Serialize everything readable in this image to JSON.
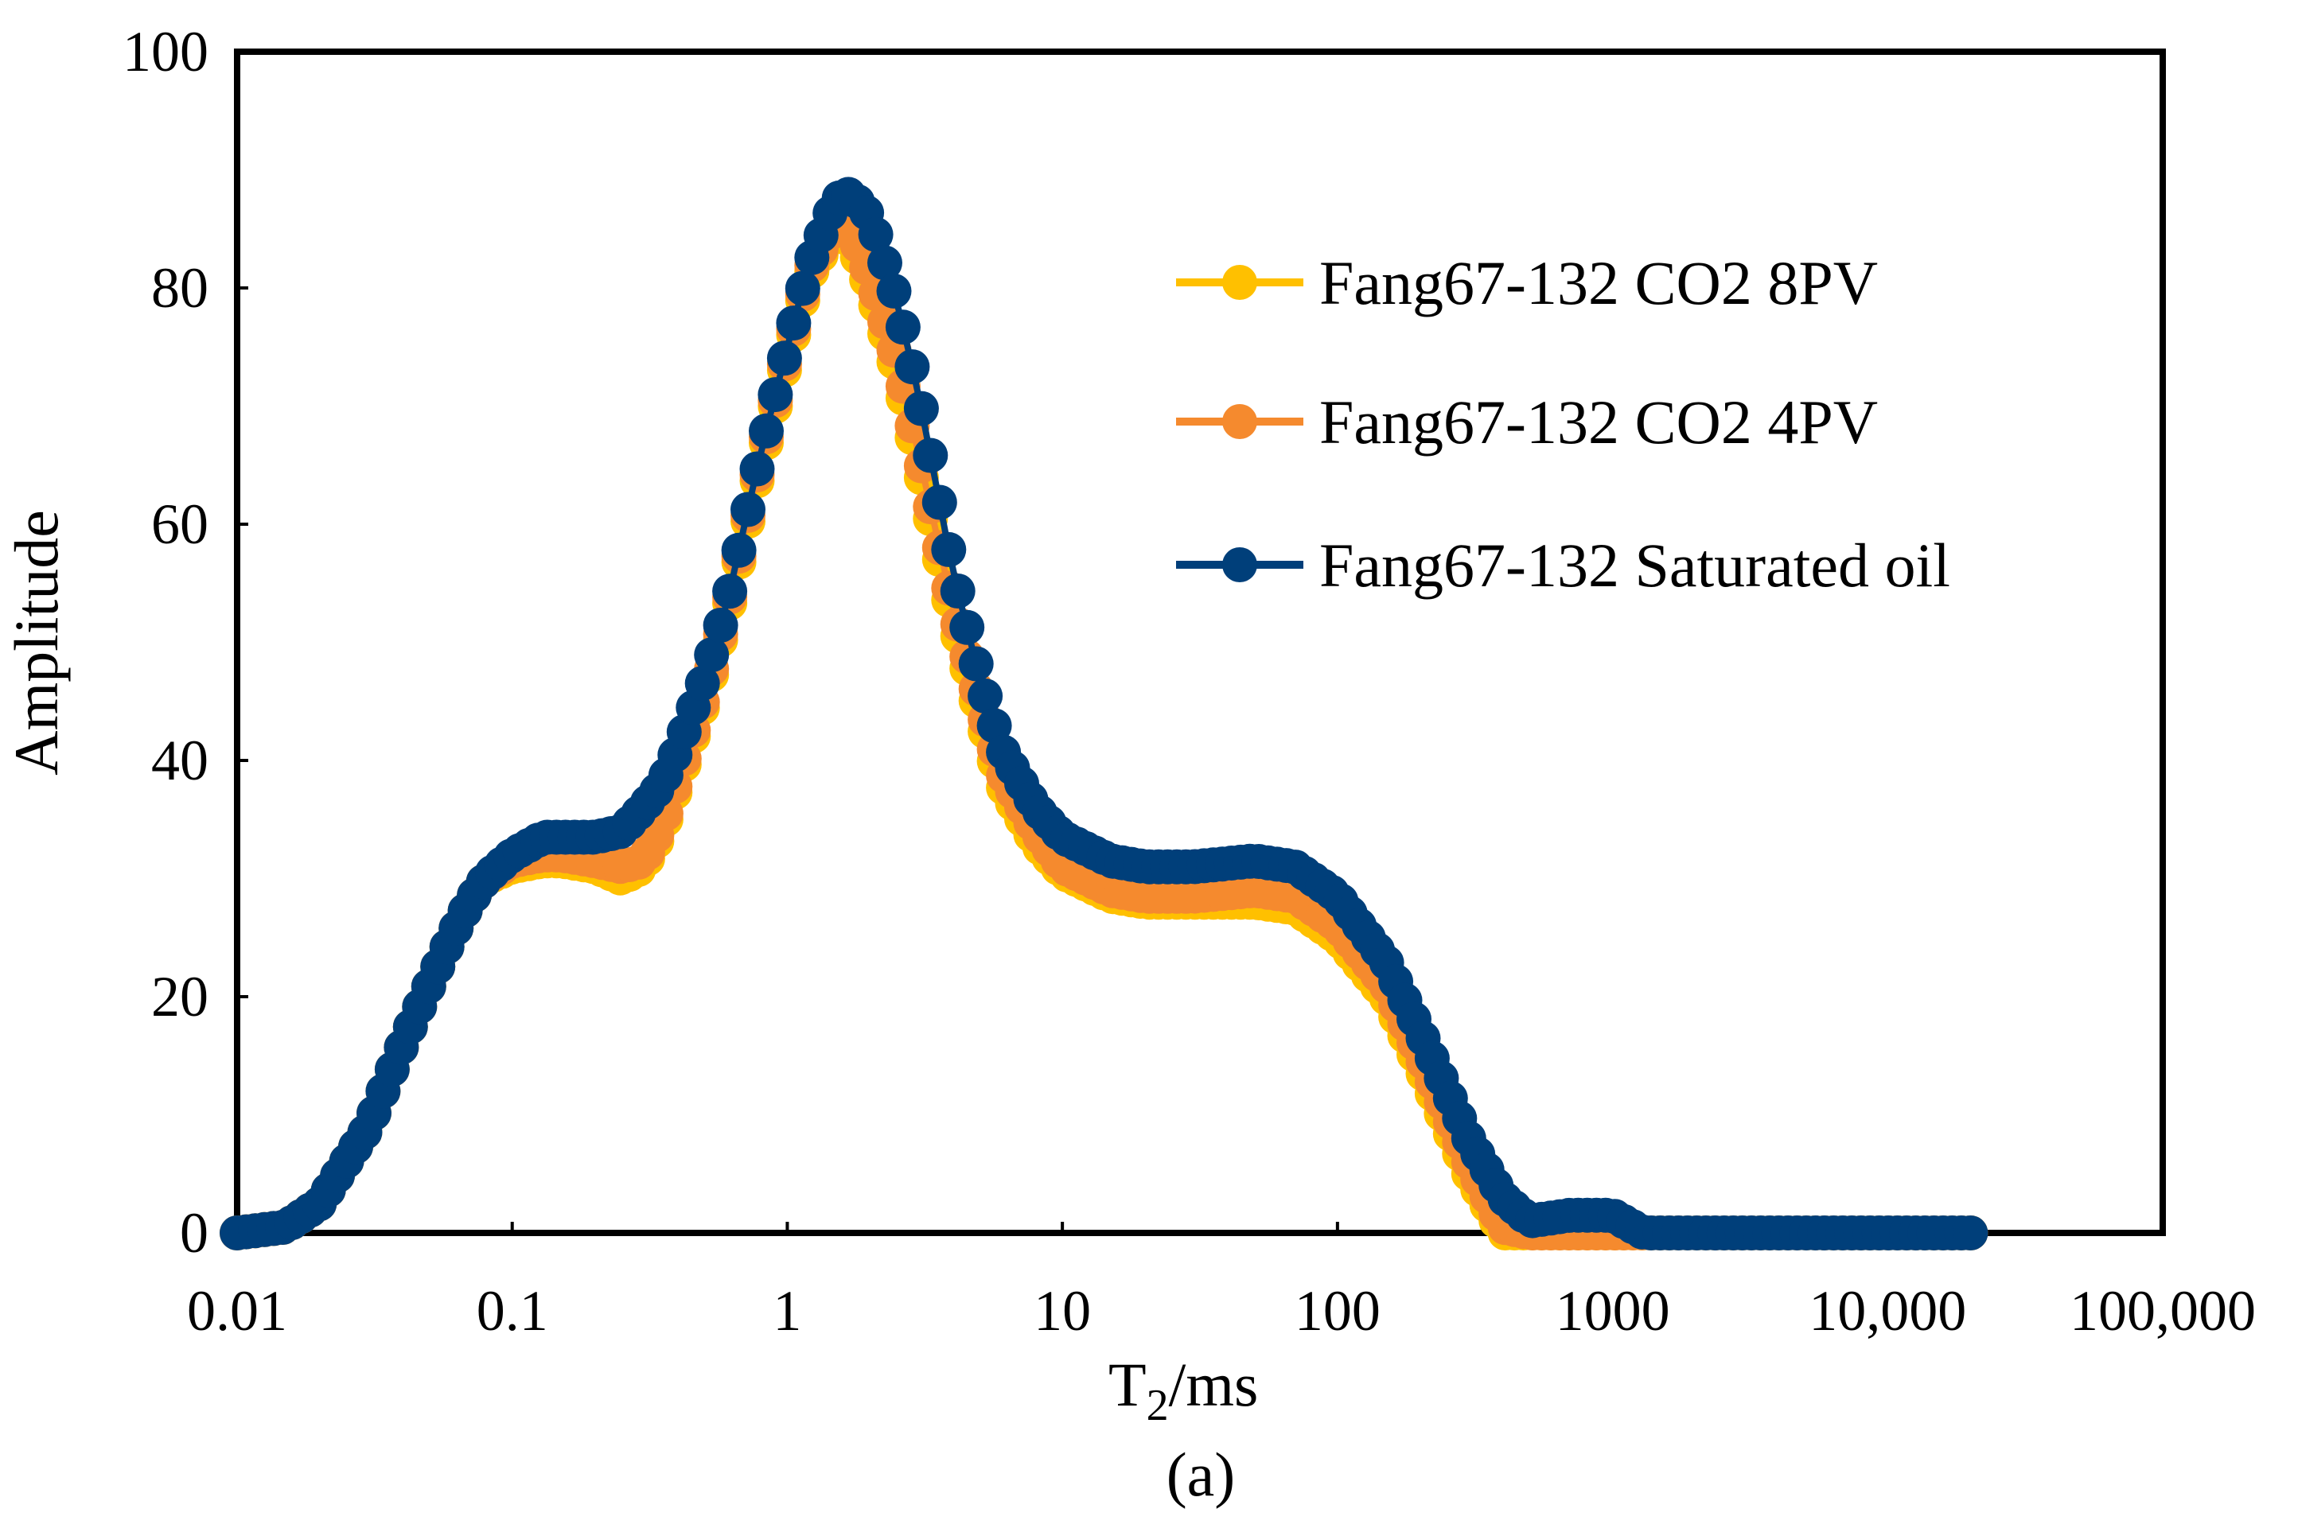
{
  "chart_data": {
    "type": "line",
    "title": "",
    "caption": "(a)",
    "xlabel_main": "T",
    "xlabel_sub": "2",
    "xlabel_suffix": "/ms",
    "ylabel": "Amplitude",
    "xscale": "log",
    "xlim": [
      0.01,
      100000
    ],
    "ylim": [
      0,
      100
    ],
    "grid": false,
    "legend_position": "top-right",
    "x_ticks": [
      0.01,
      0.1,
      1,
      10,
      100,
      1000,
      10000,
      100000
    ],
    "x_tick_labels": [
      "0.01",
      "0.1",
      "1",
      "10",
      "100",
      "1000",
      "10,000",
      "100,000"
    ],
    "y_ticks": [
      0,
      20,
      40,
      60,
      80,
      100
    ],
    "y_tick_labels": [
      "0",
      "20",
      "40",
      "60",
      "80",
      "100"
    ],
    "series": [
      {
        "name": "Fang67-132 CO2 8PV",
        "color": "#FFC000",
        "points": [
          [
            0.01,
            0
          ],
          [
            0.015,
            0.5
          ],
          [
            0.02,
            2.5
          ],
          [
            0.03,
            9
          ],
          [
            0.04,
            16
          ],
          [
            0.05,
            21
          ],
          [
            0.06,
            25
          ],
          [
            0.07,
            28
          ],
          [
            0.08,
            30
          ],
          [
            0.1,
            31
          ],
          [
            0.13,
            31.5
          ],
          [
            0.15,
            31.5
          ],
          [
            0.2,
            31
          ],
          [
            0.25,
            30
          ],
          [
            0.3,
            31
          ],
          [
            0.35,
            34
          ],
          [
            0.4,
            38
          ],
          [
            0.5,
            45
          ],
          [
            0.6,
            52
          ],
          [
            0.7,
            59
          ],
          [
            0.8,
            65
          ],
          [
            1.0,
            74
          ],
          [
            1.2,
            81
          ],
          [
            1.5,
            85
          ],
          [
            1.7,
            84
          ],
          [
            2.0,
            80
          ],
          [
            2.5,
            73
          ],
          [
            3.0,
            65
          ],
          [
            3.5,
            58
          ],
          [
            4.0,
            52
          ],
          [
            5.0,
            44
          ],
          [
            6.0,
            38
          ],
          [
            8.0,
            33
          ],
          [
            10,
            30.5
          ],
          [
            15,
            28.5
          ],
          [
            20,
            28
          ],
          [
            30,
            28
          ],
          [
            50,
            28
          ],
          [
            70,
            27.5
          ],
          [
            100,
            25
          ],
          [
            150,
            20
          ],
          [
            200,
            14
          ],
          [
            300,
            5
          ],
          [
            400,
            0
          ],
          [
            500,
            0
          ],
          [
            1000,
            0
          ],
          [
            2000,
            0
          ],
          [
            5000,
            0
          ],
          [
            10000,
            0
          ],
          [
            20000,
            0
          ]
        ]
      },
      {
        "name": "Fang67-132 CO2 4PV",
        "color": "#F58A2E",
        "points": [
          [
            0.01,
            0
          ],
          [
            0.015,
            0.5
          ],
          [
            0.02,
            2.5
          ],
          [
            0.03,
            9
          ],
          [
            0.04,
            16
          ],
          [
            0.05,
            21
          ],
          [
            0.06,
            25
          ],
          [
            0.07,
            28
          ],
          [
            0.08,
            30
          ],
          [
            0.1,
            31.5
          ],
          [
            0.13,
            32
          ],
          [
            0.15,
            32
          ],
          [
            0.2,
            31.5
          ],
          [
            0.25,
            31
          ],
          [
            0.3,
            31.5
          ],
          [
            0.35,
            34.5
          ],
          [
            0.4,
            38.5
          ],
          [
            0.5,
            45.5
          ],
          [
            0.6,
            52.5
          ],
          [
            0.7,
            59.5
          ],
          [
            0.8,
            65.5
          ],
          [
            1.0,
            74.5
          ],
          [
            1.2,
            81.5
          ],
          [
            1.5,
            85.5
          ],
          [
            1.7,
            85
          ],
          [
            2.0,
            81
          ],
          [
            2.5,
            74
          ],
          [
            3.0,
            66
          ],
          [
            3.5,
            59
          ],
          [
            4.0,
            53
          ],
          [
            5.0,
            45
          ],
          [
            6.0,
            39
          ],
          [
            8.0,
            34
          ],
          [
            10,
            31
          ],
          [
            15,
            29
          ],
          [
            20,
            28.5
          ],
          [
            30,
            28.5
          ],
          [
            50,
            29
          ],
          [
            70,
            28.5
          ],
          [
            100,
            26
          ],
          [
            150,
            21
          ],
          [
            200,
            15
          ],
          [
            300,
            6
          ],
          [
            400,
            0.5
          ],
          [
            500,
            0
          ],
          [
            700,
            0
          ],
          [
            1000,
            0
          ],
          [
            2000,
            0
          ],
          [
            5000,
            0
          ],
          [
            10000,
            0
          ],
          [
            20000,
            0
          ]
        ]
      },
      {
        "name": "Fang67-132 Saturated oil",
        "color": "#003F7A",
        "points": [
          [
            0.01,
            0
          ],
          [
            0.015,
            0.5
          ],
          [
            0.02,
            2.5
          ],
          [
            0.03,
            9
          ],
          [
            0.04,
            16
          ],
          [
            0.05,
            21
          ],
          [
            0.06,
            25
          ],
          [
            0.07,
            28
          ],
          [
            0.08,
            30
          ],
          [
            0.1,
            32
          ],
          [
            0.13,
            33.5
          ],
          [
            0.15,
            33.5
          ],
          [
            0.2,
            33.5
          ],
          [
            0.25,
            34
          ],
          [
            0.3,
            36
          ],
          [
            0.35,
            38
          ],
          [
            0.4,
            41
          ],
          [
            0.5,
            47
          ],
          [
            0.6,
            53
          ],
          [
            0.7,
            60
          ],
          [
            0.8,
            66
          ],
          [
            1.0,
            75
          ],
          [
            1.2,
            82
          ],
          [
            1.5,
            87.5
          ],
          [
            1.7,
            88
          ],
          [
            2.0,
            86
          ],
          [
            2.5,
            79
          ],
          [
            3.0,
            71
          ],
          [
            3.5,
            63
          ],
          [
            4.0,
            56
          ],
          [
            5.0,
            47
          ],
          [
            6.0,
            41
          ],
          [
            8.0,
            36
          ],
          [
            10,
            33.5
          ],
          [
            15,
            31.5
          ],
          [
            20,
            31
          ],
          [
            30,
            31
          ],
          [
            50,
            31.5
          ],
          [
            70,
            31
          ],
          [
            100,
            28.5
          ],
          [
            150,
            23
          ],
          [
            200,
            17
          ],
          [
            300,
            8
          ],
          [
            400,
            3
          ],
          [
            500,
            1
          ],
          [
            700,
            1.5
          ],
          [
            1000,
            1.5
          ],
          [
            1300,
            0
          ],
          [
            2000,
            0
          ],
          [
            5000,
            0
          ],
          [
            10000,
            0
          ],
          [
            20000,
            0
          ]
        ]
      }
    ]
  }
}
